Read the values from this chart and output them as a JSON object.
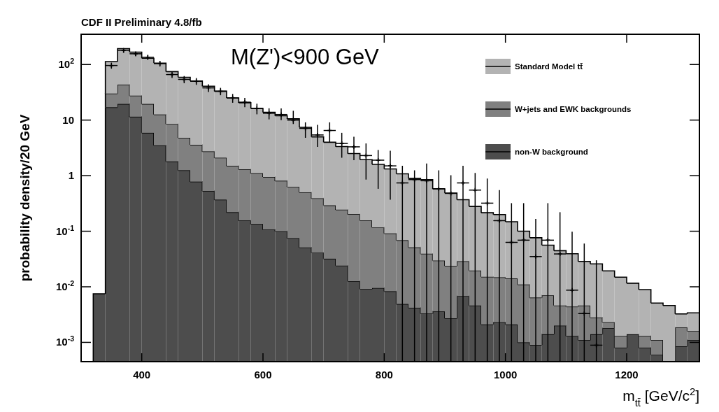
{
  "chart_data": {
    "type": "bar",
    "title": "CDF II Preliminary 4.8/fb",
    "xlabel": "m$_{tt̄}$ [GeV/c$^{2}$]",
    "ylabel": "probability density/20 GeV",
    "annotations": [
      "M(Z')<900 GeV"
    ],
    "x": [
      330,
      350,
      370,
      390,
      410,
      430,
      450,
      470,
      490,
      510,
      530,
      550,
      570,
      590,
      610,
      630,
      650,
      670,
      690,
      710,
      730,
      750,
      770,
      790,
      810,
      830,
      850,
      870,
      890,
      910,
      930,
      950,
      970,
      990,
      1010,
      1030,
      1050,
      1070,
      1090,
      1110,
      1130,
      1150,
      1170,
      1190,
      1210,
      1230,
      1250,
      1270,
      1290,
      1310
    ],
    "stacked": true,
    "log": true,
    "legend": "top right",
    "xlim": [
      300,
      1320
    ],
    "xticks": [
      400,
      600,
      800,
      1000,
      1200
    ],
    "ylim": [
      0.00045,
      350
    ],
    "yticks": [
      {
        "value": 0.001,
        "label": "10$^{-3}$"
      },
      {
        "value": 0.01,
        "label": "10$^{-2}$"
      },
      {
        "value": 0.1,
        "label": "10$^{-1}$"
      },
      1,
      10,
      {
        "value": 100,
        "label": "10$^{2}$"
      }
    ],
    "series": [
      {
        "name": "non-W background",
        "color": "#4d4d4d",
        "values": [
          0.0075,
          17,
          19.5,
          11.5,
          5.9,
          3.5,
          1.8,
          1.25,
          0.78,
          0.53,
          0.37,
          0.22,
          0.156,
          0.135,
          0.107,
          0.1,
          0.075,
          0.051,
          0.041,
          0.032,
          0.024,
          0.0126,
          0.0091,
          0.0095,
          0.0083,
          0.0049,
          0.0042,
          0.0033,
          0.0036,
          0.0027,
          0.0068,
          0.0046,
          0.0021,
          0.0023,
          0.0021,
          0.001,
          0.0009,
          0.0014,
          0.002,
          0.0013,
          0.0011,
          0.0014,
          0.0018,
          0.0008,
          0.0014,
          0.0008,
          0.0006,
          null,
          0.00085,
          0.0011
        ]
      },
      {
        "name": "W+jets and EWK backgrounds",
        "color": "#808080",
        "values": [
          null,
          13,
          24,
          16,
          13.6,
          9.1,
          6.7,
          3.55,
          2.8,
          2.2,
          1.73,
          1.28,
          1.14,
          0.97,
          0.84,
          0.71,
          0.555,
          0.45,
          0.35,
          0.26,
          0.22,
          0.19,
          0.147,
          0.107,
          0.083,
          0.064,
          0.047,
          0.036,
          0.026,
          0.021,
          0.022,
          0.015,
          0.013,
          0.0125,
          0.012,
          0.01,
          0.0055,
          0.0056,
          0.0026,
          0.0031,
          0.0035,
          0.0014,
          0.0005,
          0.0005,
          null,
          0.0005,
          0.0005,
          null,
          0.001,
          0.0005
        ]
      },
      {
        "name": "Standard Model tt̄",
        "color": "#b3b3b3",
        "values": [
          null,
          83,
          150,
          140,
          110,
          93,
          66,
          54,
          47,
          38,
          31,
          23.5,
          19.2,
          15.1,
          12.9,
          11.2,
          9.9,
          6.9,
          4.6,
          3.7,
          3.1,
          2.3,
          1.78,
          1.48,
          1.23,
          1.01,
          0.84,
          0.81,
          0.55,
          0.46,
          0.34,
          0.26,
          0.2,
          0.185,
          0.134,
          0.089,
          0.07,
          0.049,
          0.04,
          0.035,
          0.024,
          0.023,
          0.017,
          0.0136,
          0.0102,
          0.0076,
          0.004,
          0.0046,
          0.0014,
          0.0018
        ]
      },
      {
        "type": "scatter",
        "color": "#000000",
        "marker": "cross",
        "x": [
          350,
          370,
          390,
          410,
          430,
          450,
          470,
          490,
          510,
          530,
          550,
          570,
          590,
          610,
          630,
          650,
          670,
          690,
          710,
          730,
          750,
          770,
          790,
          810,
          830,
          850,
          870,
          890,
          910,
          930,
          950,
          970,
          990,
          1010,
          1030,
          1050,
          1070,
          1090,
          1110,
          1130,
          1150
        ],
        "values": [
          96,
          180,
          156,
          135,
          104,
          66,
          54,
          50,
          38,
          33,
          25,
          21,
          16.2,
          13.3,
          12.6,
          10,
          7.1,
          5.4,
          6.5,
          3.8,
          3.3,
          2.3,
          1.9,
          1.5,
          0.74,
          0.85,
          0.81,
          0.58,
          0.48,
          0.74,
          0.55,
          0.32,
          0.155,
          0.063,
          0.069,
          0.035,
          0.069,
          0.039,
          0.0087,
          0.0033,
          0.00089
        ],
        "errors": [
          12,
          18,
          16,
          14,
          12,
          9,
          8,
          7,
          6,
          5,
          4.5,
          4,
          3.5,
          3,
          [
            10,
            16.2
          ],
          [
            8.5,
            14.7
          ],
          [
            4.8,
            9.1
          ],
          [
            3.3,
            8.2
          ],
          [
            4.0,
            9.1
          ],
          [
            2.1,
            5.9
          ],
          [
            1.9,
            5.0
          ],
          [
            0.85,
            3.8
          ],
          [
            0.58,
            2.9
          ],
          [
            0.37,
            2.8
          ],
          [
            0.00045,
            1.5
          ],
          [
            0.00045,
            1.25
          ],
          [
            0.00045,
            1.66
          ],
          [
            0.00045,
            1.25
          ],
          [
            0.00045,
            1.02
          ],
          [
            0.00045,
            1.5
          ],
          [
            0.00045,
            1.12
          ],
          [
            0.00045,
            0.89
          ],
          [
            0.00045,
            0.55
          ],
          [
            0.00045,
            0.32
          ],
          [
            0.00045,
            0.32
          ],
          [
            0.00045,
            0.166
          ],
          [
            0.00045,
            0.32
          ],
          [
            0.00045,
            0.22
          ],
          [
            0.00045,
            0.098
          ],
          [
            0.00045,
            0.06
          ],
          [
            0.00045,
            0.03
          ]
        ],
        "xerrors": [
          10,
          10,
          10,
          10,
          10,
          10,
          10,
          10,
          10,
          10,
          10,
          10,
          10,
          10,
          10,
          10,
          10,
          10,
          10,
          10,
          10,
          10,
          10,
          10,
          10,
          10,
          10,
          10,
          10,
          10,
          10,
          10,
          10,
          10,
          10,
          10,
          10,
          10,
          10,
          10,
          10
        ]
      }
    ]
  }
}
